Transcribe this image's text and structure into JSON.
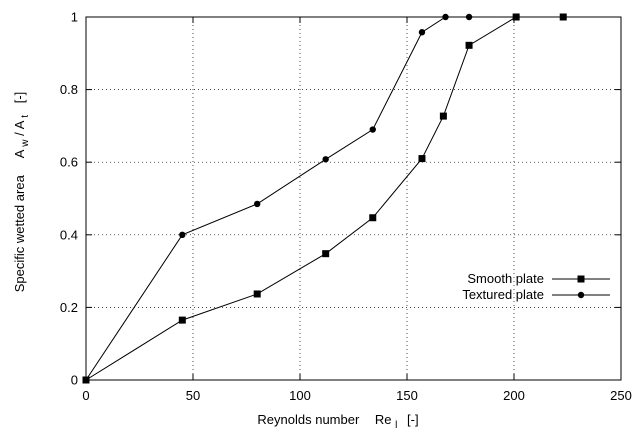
{
  "chart_data": {
    "type": "line",
    "xlabel_main": "Reynolds number",
    "xlabel_sym": "Re",
    "xlabel_sub": "l",
    "xlabel_unit": "[-]",
    "ylabel_main": "Specific wetted area",
    "ylabel_num": "A",
    "ylabel_num_sub": "w",
    "ylabel_den": "A",
    "ylabel_den_sub": "t",
    "ylabel_unit": "[-]",
    "xlim": [
      0,
      250
    ],
    "ylim": [
      0,
      1
    ],
    "x_ticks": [
      0,
      50,
      100,
      150,
      200,
      250
    ],
    "y_ticks": [
      0,
      0.2,
      0.4,
      0.6,
      0.8,
      1
    ],
    "x_tick_labels": [
      "0",
      "50",
      "100",
      "150",
      "200",
      "250"
    ],
    "y_tick_labels": [
      "0",
      "0.2",
      "0.4",
      "0.6",
      "0.8",
      "1"
    ],
    "grid": true,
    "legend_position": "right",
    "series": [
      {
        "name": "Smooth plate",
        "marker": "square",
        "x": [
          0,
          45,
          80,
          112,
          134,
          157,
          167,
          179,
          201,
          223
        ],
        "y": [
          0,
          0.165,
          0.237,
          0.348,
          0.447,
          0.61,
          0.727,
          0.922,
          1,
          1
        ]
      },
      {
        "name": "Textured plate",
        "marker": "circle",
        "x": [
          0,
          45,
          80,
          112,
          134,
          157,
          168,
          179,
          201,
          223
        ],
        "y": [
          0,
          0.4,
          0.485,
          0.608,
          0.69,
          0.958,
          1,
          1,
          1,
          1
        ]
      }
    ]
  }
}
